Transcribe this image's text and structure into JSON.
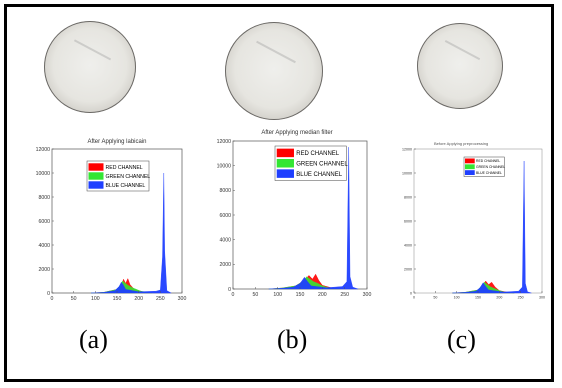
{
  "captions": [
    "(a)",
    "(b)",
    "(c)"
  ],
  "legend_labels": [
    "RED CHANNEL",
    "GREEN CHANNEL",
    "BLUE CHANNEL"
  ],
  "colors": {
    "red": "#ff0000",
    "green": "#33e633",
    "blue": "#1f3fff"
  },
  "chart_data": [
    {
      "type": "area",
      "title": "After Applying labicain",
      "xlabel": "",
      "ylabel": "",
      "xlim": [
        0,
        300
      ],
      "ylim": [
        0,
        12000
      ],
      "xticks": [
        0,
        50,
        100,
        150,
        200,
        250,
        300
      ],
      "yticks": [
        0,
        2000,
        4000,
        6000,
        8000,
        10000,
        12000
      ],
      "legend": "top-center",
      "series": [
        {
          "name": "RED CHANNEL",
          "points": [
            [
              90,
              0
            ],
            [
              120,
              60
            ],
            [
              150,
              300
            ],
            [
              160,
              600
            ],
            [
              165,
              1150
            ],
            [
              170,
              800
            ],
            [
              175,
              1200
            ],
            [
              180,
              700
            ],
            [
              190,
              300
            ],
            [
              210,
              100
            ],
            [
              230,
              0
            ]
          ]
        },
        {
          "name": "GREEN CHANNEL",
          "points": [
            [
              90,
              0
            ],
            [
              120,
              60
            ],
            [
              150,
              300
            ],
            [
              158,
              700
            ],
            [
              163,
              1000
            ],
            [
              168,
              850
            ],
            [
              175,
              650
            ],
            [
              185,
              450
            ],
            [
              195,
              300
            ],
            [
              205,
              150
            ],
            [
              230,
              0
            ]
          ]
        },
        {
          "name": "BLUE CHANNEL",
          "points": [
            [
              90,
              0
            ],
            [
              120,
              50
            ],
            [
              145,
              200
            ],
            [
              155,
              550
            ],
            [
              160,
              900
            ],
            [
              165,
              650
            ],
            [
              170,
              300
            ],
            [
              200,
              100
            ],
            [
              240,
              150
            ],
            [
              250,
              250
            ],
            [
              255,
              3000
            ],
            [
              258,
              10000
            ],
            [
              260,
              3500
            ],
            [
              265,
              200
            ],
            [
              275,
              0
            ]
          ]
        }
      ]
    },
    {
      "type": "area",
      "title": "After Applying median filter",
      "xlabel": "",
      "ylabel": "",
      "xlim": [
        0,
        300
      ],
      "ylim": [
        0,
        12000
      ],
      "xticks": [
        0,
        50,
        100,
        150,
        200,
        250,
        300
      ],
      "yticks": [
        0,
        2000,
        4000,
        6000,
        8000,
        10000,
        12000
      ],
      "legend": "top-right",
      "series": [
        {
          "name": "RED CHANNEL",
          "points": [
            [
              80,
              0
            ],
            [
              110,
              80
            ],
            [
              140,
              250
            ],
            [
              160,
              700
            ],
            [
              170,
              1100
            ],
            [
              178,
              800
            ],
            [
              185,
              1200
            ],
            [
              192,
              700
            ],
            [
              200,
              300
            ],
            [
              220,
              100
            ],
            [
              240,
              0
            ]
          ]
        },
        {
          "name": "GREEN CHANNEL",
          "points": [
            [
              80,
              0
            ],
            [
              110,
              80
            ],
            [
              140,
              250
            ],
            [
              158,
              650
            ],
            [
              165,
              1000
            ],
            [
              172,
              800
            ],
            [
              180,
              600
            ],
            [
              190,
              450
            ],
            [
              200,
              250
            ],
            [
              215,
              100
            ],
            [
              240,
              0
            ]
          ]
        },
        {
          "name": "BLUE CHANNEL",
          "points": [
            [
              80,
              0
            ],
            [
              110,
              60
            ],
            [
              135,
              150
            ],
            [
              150,
              450
            ],
            [
              160,
              950
            ],
            [
              167,
              600
            ],
            [
              175,
              250
            ],
            [
              210,
              100
            ],
            [
              245,
              200
            ],
            [
              255,
              600
            ],
            [
              259,
              11500
            ],
            [
              262,
              1000
            ],
            [
              268,
              150
            ],
            [
              280,
              0
            ]
          ]
        }
      ]
    },
    {
      "type": "area",
      "title": "Before Applying preprocessing",
      "xlabel": "",
      "ylabel": "",
      "xlim": [
        0,
        300
      ],
      "ylim": [
        0,
        12000
      ],
      "xticks": [
        0,
        50,
        100,
        150,
        200,
        250,
        300
      ],
      "yticks": [
        0,
        2000,
        4000,
        6000,
        8000,
        10000,
        12000
      ],
      "legend": "top-right",
      "series": [
        {
          "name": "RED CHANNEL",
          "points": [
            [
              90,
              0
            ],
            [
              120,
              60
            ],
            [
              150,
              250
            ],
            [
              160,
              600
            ],
            [
              168,
              1000
            ],
            [
              175,
              700
            ],
            [
              182,
              900
            ],
            [
              190,
              500
            ],
            [
              200,
              200
            ],
            [
              220,
              50
            ],
            [
              235,
              0
            ]
          ]
        },
        {
          "name": "GREEN CHANNEL",
          "points": [
            [
              90,
              0
            ],
            [
              120,
              60
            ],
            [
              150,
              250
            ],
            [
              158,
              600
            ],
            [
              165,
              900
            ],
            [
              172,
              700
            ],
            [
              180,
              500
            ],
            [
              190,
              350
            ],
            [
              200,
              200
            ],
            [
              215,
              50
            ],
            [
              235,
              0
            ]
          ]
        },
        {
          "name": "BLUE CHANNEL",
          "points": [
            [
              90,
              0
            ],
            [
              120,
              50
            ],
            [
              145,
              150
            ],
            [
              155,
              450
            ],
            [
              162,
              850
            ],
            [
              168,
              550
            ],
            [
              175,
              250
            ],
            [
              210,
              80
            ],
            [
              245,
              150
            ],
            [
              254,
              500
            ],
            [
              258,
              11000
            ],
            [
              261,
              800
            ],
            [
              266,
              100
            ],
            [
              275,
              0
            ]
          ]
        }
      ]
    }
  ]
}
